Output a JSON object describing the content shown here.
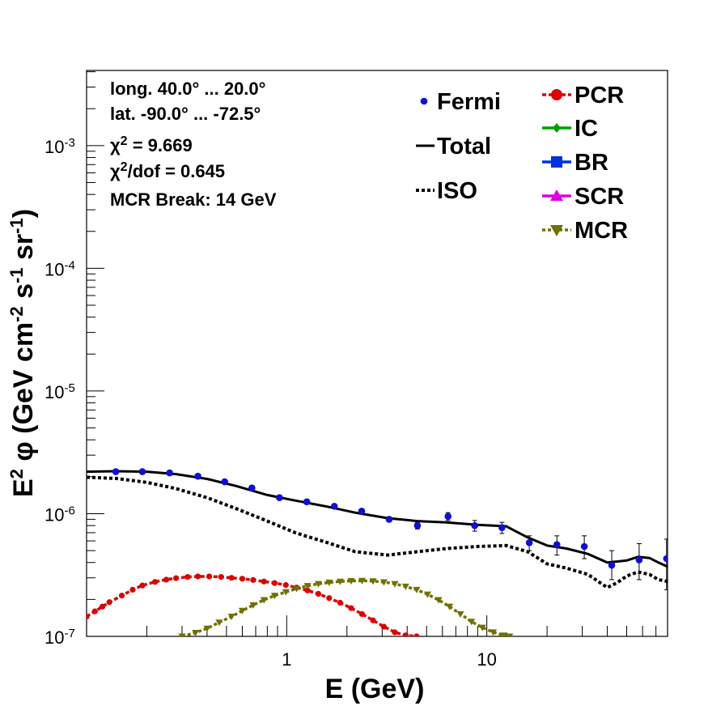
{
  "chart_data": {
    "type": "scatter",
    "title": "",
    "xlabel": "E (GeV)",
    "ylabel": {
      "parts": [
        {
          "t": "E",
          "s": "n"
        },
        {
          "t": "2",
          "s": "sup"
        },
        {
          "t": " φ (GeV cm",
          "s": "n"
        },
        {
          "t": "-2",
          "s": "sup"
        },
        {
          "t": " s",
          "s": "n"
        },
        {
          "t": "-1",
          "s": "sup"
        },
        {
          "t": " sr",
          "s": "n"
        },
        {
          "t": "-1",
          "s": "sup"
        },
        {
          "t": ")",
          "s": "n"
        }
      ]
    },
    "x_scale": "log",
    "y_scale": "log",
    "xlim": [
      0.1,
      80
    ],
    "ylim": [
      1e-07,
      0.0041
    ],
    "x_ticks": [
      {
        "value": 1,
        "label": "1"
      },
      {
        "value": 10,
        "label": "10"
      }
    ],
    "y_ticks": [
      {
        "value": 1e-07,
        "base": "10",
        "exp": "-7"
      },
      {
        "value": 1e-06,
        "base": "10",
        "exp": "-6"
      },
      {
        "value": 1e-05,
        "base": "10",
        "exp": "-5"
      },
      {
        "value": 0.0001,
        "base": "10",
        "exp": "-4"
      },
      {
        "value": 0.001,
        "base": "10",
        "exp": "-3"
      }
    ],
    "info_lines": [
      {
        "parts": [
          {
            "t": "long. 40.0° ... 20.0°",
            "s": "n"
          }
        ]
      },
      {
        "parts": [
          {
            "t": "lat. -90.0° ... -72.5°",
            "s": "n"
          }
        ]
      },
      {
        "parts": [
          {
            "t": "χ",
            "s": "n"
          },
          {
            "t": "2",
            "s": "sup"
          },
          {
            "t": " = 9.669",
            "s": "n"
          }
        ]
      },
      {
        "parts": [
          {
            "t": "χ",
            "s": "n"
          },
          {
            "t": "2",
            "s": "sup"
          },
          {
            "t": "/dof = 0.645",
            "s": "n"
          }
        ]
      },
      {
        "parts": [
          {
            "t": "MCR Break: 14 GeV",
            "s": "n"
          }
        ]
      }
    ],
    "legend": {
      "left_column": [
        "Fermi",
        "Total",
        "ISO"
      ],
      "right_column": [
        "PCR",
        "IC",
        "BR",
        "SCR",
        "MCR"
      ]
    },
    "colors": {
      "Fermi": "#1010d0",
      "Total": "#000000",
      "ISO": "#000000",
      "PCR": "#dd0000",
      "IC": "#00a000",
      "BR": "#0030e0",
      "SCR": "#e000e0",
      "MCR": "#707000"
    },
    "series": {
      "Fermi": {
        "x": [
          0.14,
          0.19,
          0.26,
          0.36,
          0.49,
          0.67,
          0.92,
          1.26,
          1.73,
          2.37,
          3.25,
          4.5,
          6.4,
          8.7,
          11.9,
          16.3,
          22.4,
          30.7,
          42.1,
          57.7,
          79.1
        ],
        "y": [
          2.2e-06,
          2.2e-06,
          2.15e-06,
          2.02e-06,
          1.82e-06,
          1.62e-06,
          1.35e-06,
          1.25e-06,
          1.15e-06,
          1.05e-06,
          9e-07,
          8e-07,
          9.5e-07,
          8e-07,
          7.7e-07,
          5.8e-07,
          5.6e-07,
          5.4e-07,
          3.8e-07,
          4.2e-07,
          4.3e-07
        ],
        "err_low": [
          2.15e-06,
          2.15e-06,
          2.1e-06,
          1.97e-06,
          1.77e-06,
          1.57e-06,
          1.31e-06,
          1.21e-06,
          1.11e-06,
          1.01e-06,
          8.6e-07,
          7.5e-07,
          8.8e-07,
          7.2e-07,
          6.9e-07,
          5e-07,
          4.6e-07,
          4.3e-07,
          2.9e-07,
          2.9e-07,
          2.4e-07
        ],
        "err_high": [
          2.25e-06,
          2.25e-06,
          2.2e-06,
          2.07e-06,
          1.87e-06,
          1.67e-06,
          1.39e-06,
          1.29e-06,
          1.19e-06,
          1.09e-06,
          9.4e-07,
          8.5e-07,
          1.02e-06,
          8.8e-07,
          8.5e-07,
          6.6e-07,
          6.6e-07,
          6.6e-07,
          5e-07,
          5.7e-07,
          6.2e-07
        ]
      },
      "Total": {
        "x": [
          0.1,
          0.14,
          0.2,
          0.28,
          0.4,
          0.56,
          0.8,
          1.1,
          1.6,
          2.2,
          3.2,
          4.5,
          6.3,
          9,
          12.5,
          16,
          20,
          25,
          32,
          40,
          50,
          57,
          65,
          72,
          80
        ],
        "y": [
          2.2e-06,
          2.22e-06,
          2.2e-06,
          2.1e-06,
          1.92e-06,
          1.68e-06,
          1.42e-06,
          1.28e-06,
          1.14e-06,
          1.02e-06,
          9.2e-07,
          8.7e-07,
          8.5e-07,
          8.1e-07,
          7.9e-07,
          6.4e-07,
          5.5e-07,
          5.2e-07,
          4.7e-07,
          4e-07,
          4.15e-07,
          4.45e-07,
          4.35e-07,
          4e-07,
          3.7e-07
        ]
      },
      "ISO": {
        "x": [
          0.1,
          0.14,
          0.2,
          0.28,
          0.4,
          0.56,
          0.8,
          1.1,
          1.6,
          2.2,
          3.2,
          4.5,
          6.3,
          9,
          12.5,
          16,
          20,
          25,
          32,
          40,
          45,
          50,
          57,
          65,
          72,
          80
        ],
        "y": [
          1.98e-06,
          1.94e-06,
          1.8e-06,
          1.6e-06,
          1.35e-06,
          1.1e-06,
          8.7e-07,
          7e-07,
          5.8e-07,
          4.9e-07,
          4.6e-07,
          4.9e-07,
          5.2e-07,
          5.4e-07,
          5.5e-07,
          4.9e-07,
          3.9e-07,
          3.6e-07,
          3.2e-07,
          2.5e-07,
          2.75e-07,
          3.1e-07,
          3.35e-07,
          3.2e-07,
          2.9e-07,
          2.8e-07
        ]
      },
      "PCR": {
        "x": [
          0.1,
          0.11,
          0.12,
          0.13,
          0.15,
          0.17,
          0.19,
          0.22,
          0.25,
          0.28,
          0.32,
          0.36,
          0.41,
          0.47,
          0.53,
          0.6,
          0.68,
          0.77,
          0.87,
          0.99,
          1.12,
          1.27,
          1.44,
          1.63,
          1.85,
          2.1,
          2.38,
          2.7,
          3.06,
          3.47,
          3.93,
          4.46
        ],
        "y": [
          1.45e-07,
          1.6e-07,
          1.75e-07,
          1.9e-07,
          2.15e-07,
          2.4e-07,
          2.6e-07,
          2.78e-07,
          2.9e-07,
          2.98e-07,
          3.05e-07,
          3.08e-07,
          3.08e-07,
          3.05e-07,
          3e-07,
          2.95e-07,
          2.88e-07,
          2.8e-07,
          2.72e-07,
          2.62e-07,
          2.5e-07,
          2.37e-07,
          2.22e-07,
          2.05e-07,
          1.88e-07,
          1.7e-07,
          1.52e-07,
          1.35e-07,
          1.2e-07,
          1.08e-07,
          1.02e-07,
          1e-07
        ]
      },
      "MCR": {
        "x": [
          0.3,
          0.35,
          0.4,
          0.46,
          0.53,
          0.6,
          0.68,
          0.77,
          0.87,
          0.99,
          1.12,
          1.27,
          1.44,
          1.63,
          1.85,
          2.1,
          2.38,
          2.7,
          3.06,
          3.47,
          3.93,
          4.46,
          5.06,
          5.74,
          6.51,
          7.38,
          8.37,
          9.5,
          10.77,
          12.2,
          13
        ],
        "y": [
          1e-07,
          1.07e-07,
          1.16e-07,
          1.3e-07,
          1.45e-07,
          1.62e-07,
          1.8e-07,
          1.98e-07,
          2.15e-07,
          2.3e-07,
          2.45e-07,
          2.58e-07,
          2.68e-07,
          2.75e-07,
          2.8e-07,
          2.83e-07,
          2.84e-07,
          2.82e-07,
          2.77e-07,
          2.68e-07,
          2.55e-07,
          2.4e-07,
          2.2e-07,
          1.98e-07,
          1.75e-07,
          1.52e-07,
          1.32e-07,
          1.18e-07,
          1.08e-07,
          1.02e-07,
          1e-07
        ]
      }
    }
  }
}
